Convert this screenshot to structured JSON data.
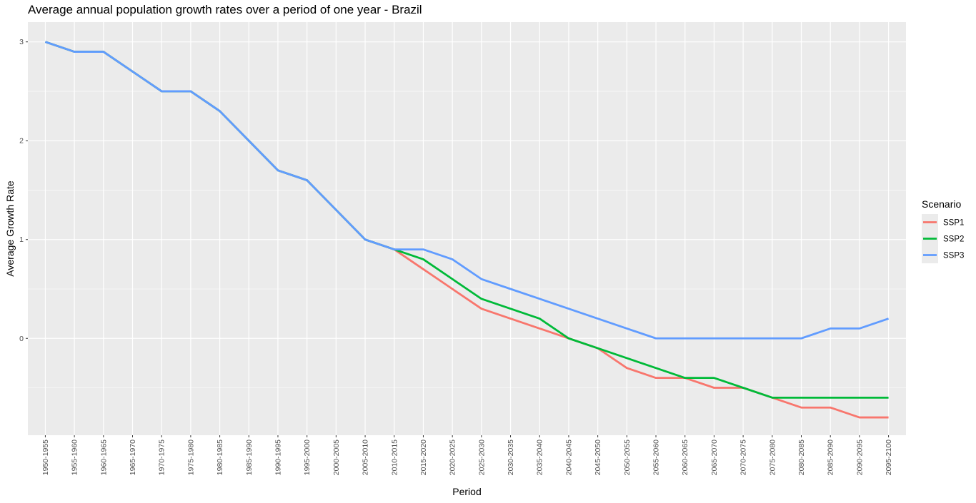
{
  "chart_data": {
    "type": "line",
    "title": "Average annual population growth rates over a period of one year - Brazil",
    "xlabel": "Period",
    "ylabel": "Average Growth Rate",
    "categories": [
      "1950-1955",
      "1955-1960",
      "1960-1965",
      "1965-1970",
      "1970-1975",
      "1975-1980",
      "1980-1985",
      "1985-1990",
      "1990-1995",
      "1995-2000",
      "2000-2005",
      "2005-2010",
      "2010-2015",
      "2015-2020",
      "2020-2025",
      "2025-2030",
      "2030-2035",
      "2035-2040",
      "2040-2045",
      "2045-2050",
      "2050-2055",
      "2055-2060",
      "2060-2065",
      "2065-2070",
      "2070-2075",
      "2075-2080",
      "2080-2085",
      "2085-2090",
      "2090-2095",
      "2095-2100"
    ],
    "ylim": [
      -0.98,
      3.2
    ],
    "yticks": [
      0,
      1,
      2,
      3
    ],
    "grid": true,
    "legend_title": "Scenario",
    "legend_position": "right",
    "series": [
      {
        "name": "SSP1",
        "color": "#F8766D",
        "values": [
          3.0,
          2.9,
          2.9,
          2.7,
          2.5,
          2.5,
          2.3,
          2.0,
          1.7,
          1.6,
          1.3,
          1.0,
          0.9,
          0.7,
          0.5,
          0.3,
          0.2,
          0.1,
          0.0,
          -0.1,
          -0.3,
          -0.4,
          -0.4,
          -0.5,
          -0.5,
          -0.6,
          -0.7,
          -0.7,
          -0.8,
          -0.8
        ]
      },
      {
        "name": "SSP2",
        "color": "#00BA38",
        "values": [
          3.0,
          2.9,
          2.9,
          2.7,
          2.5,
          2.5,
          2.3,
          2.0,
          1.7,
          1.6,
          1.3,
          1.0,
          0.9,
          0.8,
          0.6,
          0.4,
          0.3,
          0.2,
          0.0,
          -0.1,
          -0.2,
          -0.3,
          -0.4,
          -0.4,
          -0.5,
          -0.6,
          -0.6,
          -0.6,
          -0.6,
          -0.6
        ]
      },
      {
        "name": "SSP3",
        "color": "#619CFF",
        "values": [
          3.0,
          2.9,
          2.9,
          2.7,
          2.5,
          2.5,
          2.3,
          2.0,
          1.7,
          1.6,
          1.3,
          1.0,
          0.9,
          0.9,
          0.8,
          0.6,
          0.5,
          0.4,
          0.3,
          0.2,
          0.1,
          0.0,
          0.0,
          0.0,
          0.0,
          0.0,
          0.0,
          0.1,
          0.1,
          0.2
        ]
      }
    ]
  },
  "colors": {
    "panel_background": "#EBEBEB",
    "gridline": "#FFFFFF"
  }
}
